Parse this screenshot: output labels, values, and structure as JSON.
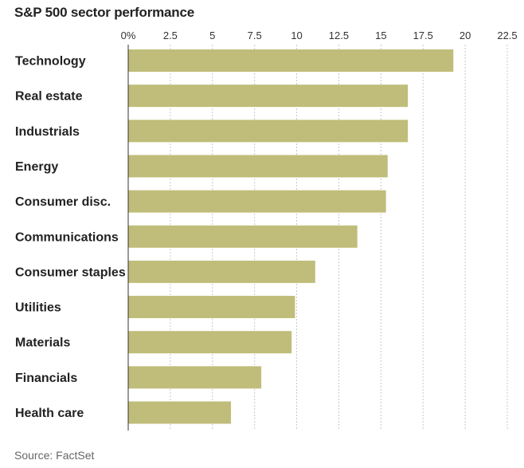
{
  "chart_data": {
    "type": "bar",
    "orientation": "horizontal",
    "title": "S&P 500 sector performance",
    "source": "Source: FactSet",
    "categories": [
      "Technology",
      "Real estate",
      "Industrials",
      "Energy",
      "Consumer disc.",
      "Communications",
      "Consumer staples",
      "Utilities",
      "Materials",
      "Financials",
      "Health care"
    ],
    "values": [
      19.3,
      16.6,
      16.6,
      15.4,
      15.3,
      13.6,
      11.1,
      9.9,
      9.7,
      7.9,
      6.1
    ],
    "xlim": [
      0,
      22.5
    ],
    "x_ticks": [
      0,
      2.5,
      5,
      7.5,
      10,
      12.5,
      15,
      17.5,
      20,
      22.5
    ],
    "x_tick_labels": [
      "0%",
      "2.5",
      "5",
      "7.5",
      "10",
      "12.5",
      "15",
      "17.5",
      "20",
      "22.5"
    ],
    "xlabel": "",
    "ylabel": "",
    "grid": "vertical dashed",
    "legend": "none",
    "colors": {
      "bar": "#c0bd7a",
      "grid": "#c8c8c8",
      "axis": "#333333"
    }
  }
}
